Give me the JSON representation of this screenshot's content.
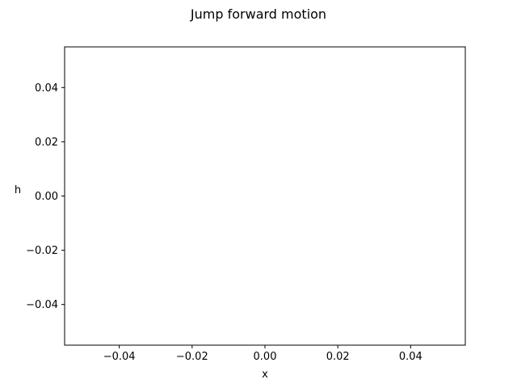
{
  "chart_data": {
    "type": "line",
    "title": "Jump forward motion",
    "xlabel": "x",
    "ylabel": "h",
    "xlim": [
      -0.055,
      0.055
    ],
    "ylim": [
      -0.055,
      0.055
    ],
    "xticks": [
      -0.04,
      -0.02,
      0.0,
      0.02,
      0.04
    ],
    "yticks": [
      -0.04,
      -0.02,
      0.0,
      0.02,
      0.04
    ],
    "xtick_labels": [
      "−0.04",
      "−0.02",
      "0.00",
      "0.02",
      "0.04"
    ],
    "ytick_labels": [
      "−0.04",
      "−0.02",
      "0.00",
      "0.02",
      "0.04"
    ],
    "series": [],
    "grid": false,
    "legend": "none",
    "colors": {
      "background": "#ffffff",
      "axes": "#000000",
      "text": "#000000"
    }
  }
}
